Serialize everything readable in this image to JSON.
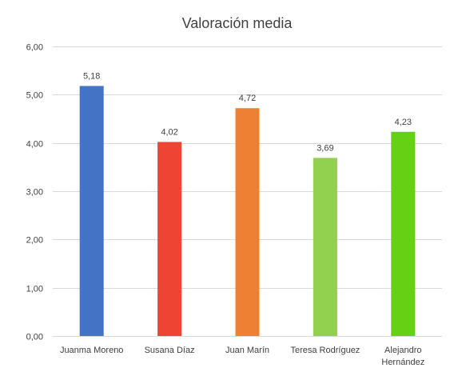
{
  "chart_data": {
    "type": "bar",
    "title": "Valoración media",
    "xlabel": "",
    "ylabel": "",
    "categories": [
      "Juanma Moreno",
      "Susana Díaz",
      "Juan Marín",
      "Teresa Rodríguez",
      "Alejandro Hernández"
    ],
    "category_lines": [
      [
        "Juanma Moreno"
      ],
      [
        "Susana Díaz"
      ],
      [
        "Juan Marín"
      ],
      [
        "Teresa Rodríguez"
      ],
      [
        "Alejandro",
        "Hernández"
      ]
    ],
    "values": [
      5.18,
      4.02,
      4.72,
      3.69,
      4.23
    ],
    "value_labels": [
      "5,18",
      "4,02",
      "4,72",
      "3,69",
      "4,23"
    ],
    "bar_colors": [
      "#4472C4",
      "#EE4433",
      "#EE8033",
      "#92D050",
      "#66D014"
    ],
    "ylim": [
      0,
      6
    ],
    "y_ticks": [
      0,
      1,
      2,
      3,
      4,
      5,
      6
    ],
    "y_tick_labels": [
      "0,00",
      "1,00",
      "2,00",
      "3,00",
      "4,00",
      "5,00",
      "6,00"
    ],
    "grid": true,
    "legend": "none",
    "gridline_color": "#D9D9D9",
    "text_color": "#404040"
  }
}
